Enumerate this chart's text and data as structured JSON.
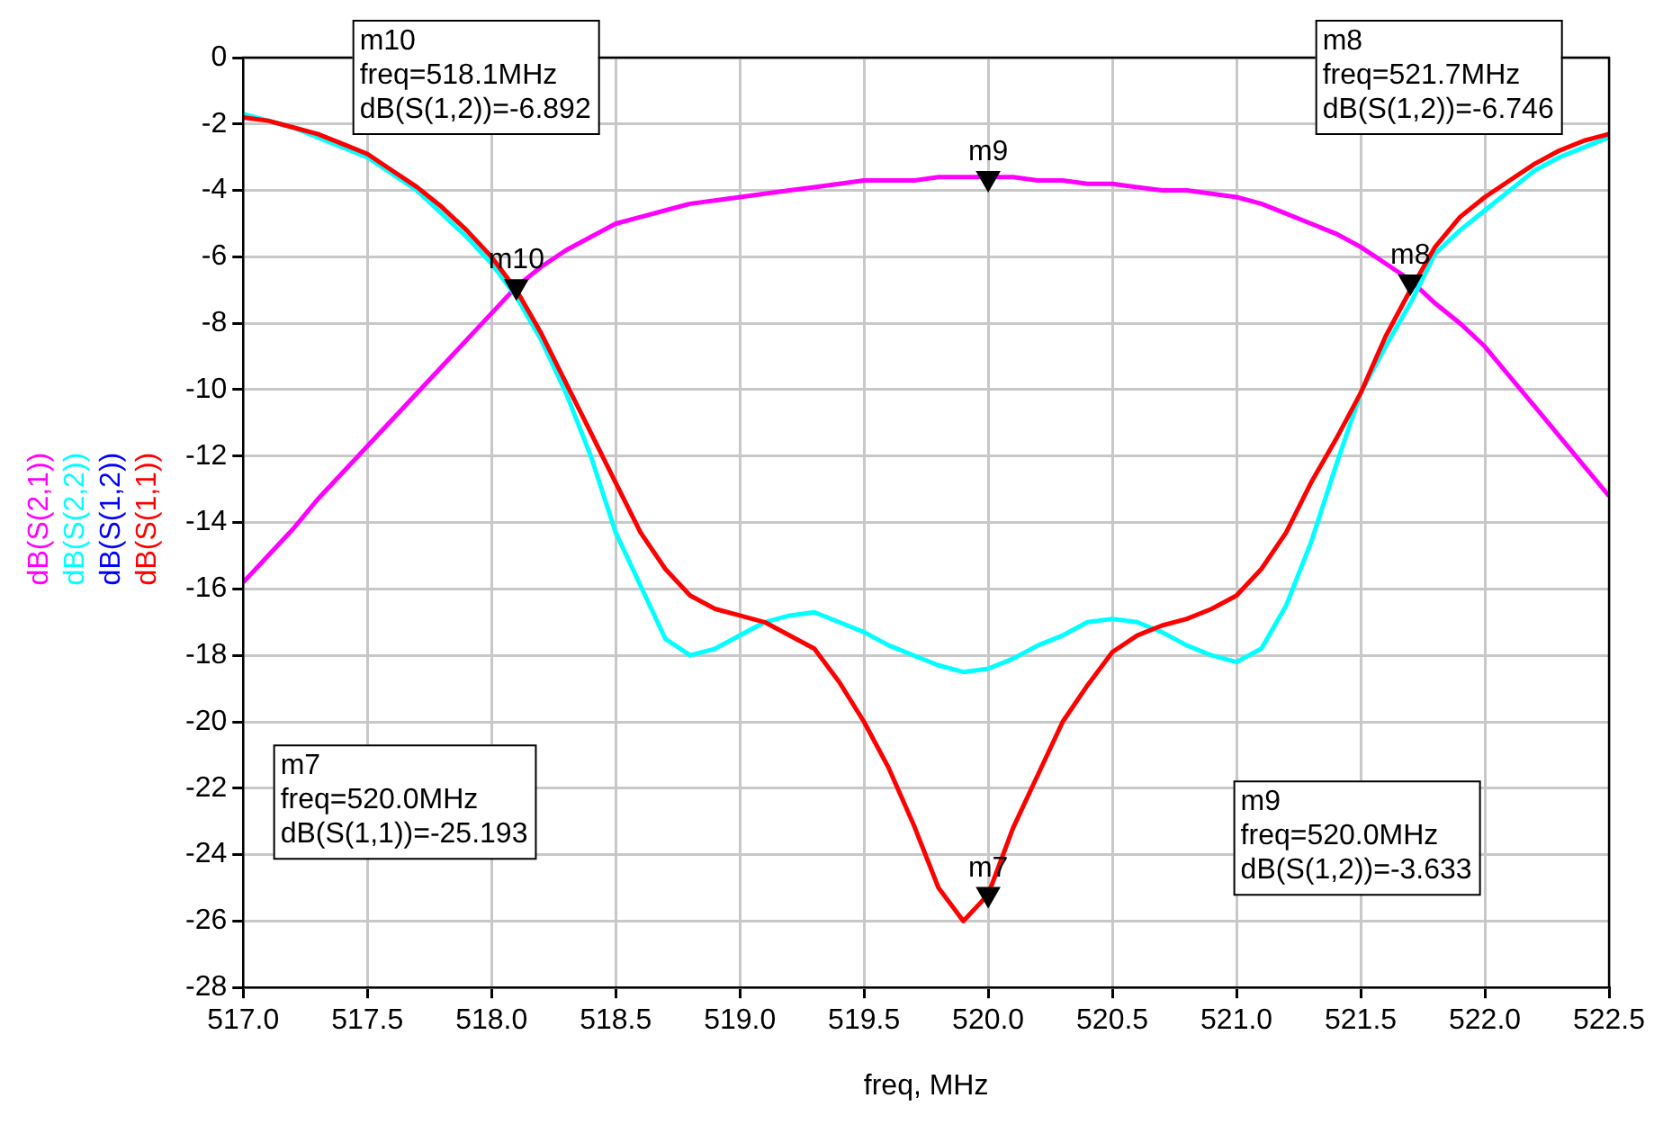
{
  "chart_data": {
    "type": "line",
    "xlabel": "freq, MHz",
    "x": [
      517.0,
      517.1,
      517.2,
      517.3,
      517.4,
      517.5,
      517.6,
      517.7,
      517.8,
      517.9,
      518.0,
      518.1,
      518.2,
      518.3,
      518.4,
      518.5,
      518.6,
      518.7,
      518.8,
      518.9,
      519.0,
      519.1,
      519.2,
      519.3,
      519.4,
      519.5,
      519.6,
      519.7,
      519.8,
      519.9,
      520.0,
      520.1,
      520.2,
      520.3,
      520.4,
      520.5,
      520.6,
      520.7,
      520.8,
      520.9,
      521.0,
      521.1,
      521.2,
      521.3,
      521.4,
      521.5,
      521.6,
      521.7,
      521.8,
      521.9,
      522.0,
      522.1,
      522.2,
      522.3,
      522.4,
      522.5
    ],
    "series": [
      {
        "name": "dB(S(2,1))",
        "color": "#ff00ff",
        "values": [
          -15.8,
          -15.0,
          -14.2,
          -13.3,
          -12.5,
          -11.7,
          -10.9,
          -10.1,
          -9.3,
          -8.5,
          -7.7,
          -6.9,
          -6.3,
          -5.8,
          -5.4,
          -5.0,
          -4.8,
          -4.6,
          -4.4,
          -4.3,
          -4.2,
          -4.1,
          -4.0,
          -3.9,
          -3.8,
          -3.7,
          -3.7,
          -3.7,
          -3.6,
          -3.6,
          -3.6,
          -3.6,
          -3.7,
          -3.7,
          -3.8,
          -3.8,
          -3.9,
          -4.0,
          -4.0,
          -4.1,
          -4.2,
          -4.4,
          -4.7,
          -5.0,
          -5.3,
          -5.7,
          -6.2,
          -6.7,
          -7.4,
          -8.0,
          -8.7,
          -9.6,
          -10.5,
          -11.4,
          -12.3,
          -13.2
        ]
      },
      {
        "name": "dB(S(2,2))",
        "color": "#00ffff",
        "values": [
          -1.7,
          -1.9,
          -2.1,
          -2.4,
          -2.7,
          -3.0,
          -3.5,
          -4.0,
          -4.7,
          -5.4,
          -6.2,
          -7.2,
          -8.5,
          -10.1,
          -12.0,
          -14.3,
          -15.9,
          -17.5,
          -18.0,
          -17.8,
          -17.4,
          -17.0,
          -16.8,
          -16.7,
          -17.0,
          -17.3,
          -17.7,
          -18.0,
          -18.3,
          -18.5,
          -18.4,
          -18.1,
          -17.7,
          -17.4,
          -17.0,
          -16.9,
          -17.0,
          -17.3,
          -17.7,
          -18.0,
          -18.2,
          -17.8,
          -16.5,
          -14.6,
          -12.3,
          -10.1,
          -8.7,
          -7.4,
          -5.9,
          -5.2,
          -4.6,
          -4.0,
          -3.4,
          -3.0,
          -2.7,
          -2.4
        ]
      },
      {
        "name": "dB(S(1,2))",
        "color": "#0000ff",
        "values": [
          null,
          null,
          null,
          null,
          null,
          null,
          null,
          null,
          null,
          null,
          null,
          null,
          null,
          null,
          null,
          null,
          null,
          null,
          null,
          null,
          null,
          null,
          null,
          null,
          null,
          null,
          null,
          null,
          null,
          null,
          null,
          null,
          null,
          null,
          null,
          null,
          null,
          null,
          null,
          null,
          null,
          null,
          null,
          null,
          null,
          null,
          null,
          null,
          null,
          null,
          null,
          null,
          null,
          null,
          null,
          null
        ]
      },
      {
        "type": "scatter",
        "color": "#000000",
        "marker": "triangle",
        "x": [
          520.0,
          521.7,
          520.0,
          518.1
        ],
        "values": [
          -25.193,
          -6.746,
          -3.633,
          -6.892
        ]
      },
      {
        "name": "dB(S(1,1))",
        "color": "#ff0000",
        "values": [
          -1.8,
          -1.9,
          -2.1,
          -2.3,
          -2.6,
          -2.9,
          -3.4,
          -3.9,
          -4.5,
          -5.2,
          -6.0,
          -7.0,
          -8.3,
          -9.8,
          -11.3,
          -12.8,
          -14.3,
          -15.4,
          -16.2,
          -16.6,
          -16.8,
          -17.0,
          -17.4,
          -17.8,
          -18.8,
          -20.0,
          -21.4,
          -23.1,
          -25.0,
          -26.0,
          -25.2,
          -23.2,
          -21.6,
          -20.0,
          -18.9,
          -17.9,
          -17.4,
          -17.1,
          -16.9,
          -16.6,
          -16.2,
          -15.4,
          -14.3,
          -12.8,
          -11.5,
          -10.1,
          -8.4,
          -7.0,
          -5.7,
          -4.8,
          -4.2,
          -3.7,
          -3.2,
          -2.8,
          -2.5,
          -2.3
        ]
      }
    ],
    "xlim": [
      517,
      522.5
    ],
    "xticks": [
      {
        "value": 517,
        "label": "517.0"
      },
      {
        "value": 517.5,
        "label": "517.5"
      },
      {
        "value": 518,
        "label": "518.0"
      },
      {
        "value": 518.5,
        "label": "518.5"
      },
      {
        "value": 519,
        "label": "519.0"
      },
      {
        "value": 519.5,
        "label": "519.5"
      },
      {
        "value": 520,
        "label": "520.0"
      },
      {
        "value": 520.5,
        "label": "520.5"
      },
      {
        "value": 521,
        "label": "521.0"
      },
      {
        "value": 521.5,
        "label": "521.5"
      },
      {
        "value": 522,
        "label": "522.0"
      },
      {
        "value": 522.5,
        "label": "522.5"
      }
    ],
    "ylim": [
      -28,
      0
    ],
    "yticks": [
      -28,
      -26,
      -24,
      -22,
      -20,
      -18,
      -16,
      -14,
      -12,
      -10,
      -8,
      -6,
      -4,
      -2,
      0
    ],
    "grid": true,
    "legend": "left",
    "marker": "none",
    "line_style": "solid",
    "annotations": [
      "m7\nfreq=520.0MHz\ndB(S(1,1))=-25.193",
      "m8\nfreq=521.7MHz\ndB(S(1,2))=-6.746",
      "m9\nfreq=520.0MHz\ndB(S(1,2))=-3.633",
      "m10\nfreq=518.1MHz\ndB(S(1,2))=-6.892",
      {
        "text": "m7",
        "x": 520.0,
        "y": -25.193
      },
      {
        "text": "m8",
        "x": 521.7,
        "y": -6.746
      },
      {
        "text": "m9",
        "x": 520.0,
        "y": -3.633
      },
      {
        "text": "m10",
        "x": 518.1,
        "y": -6.892
      }
    ]
  }
}
